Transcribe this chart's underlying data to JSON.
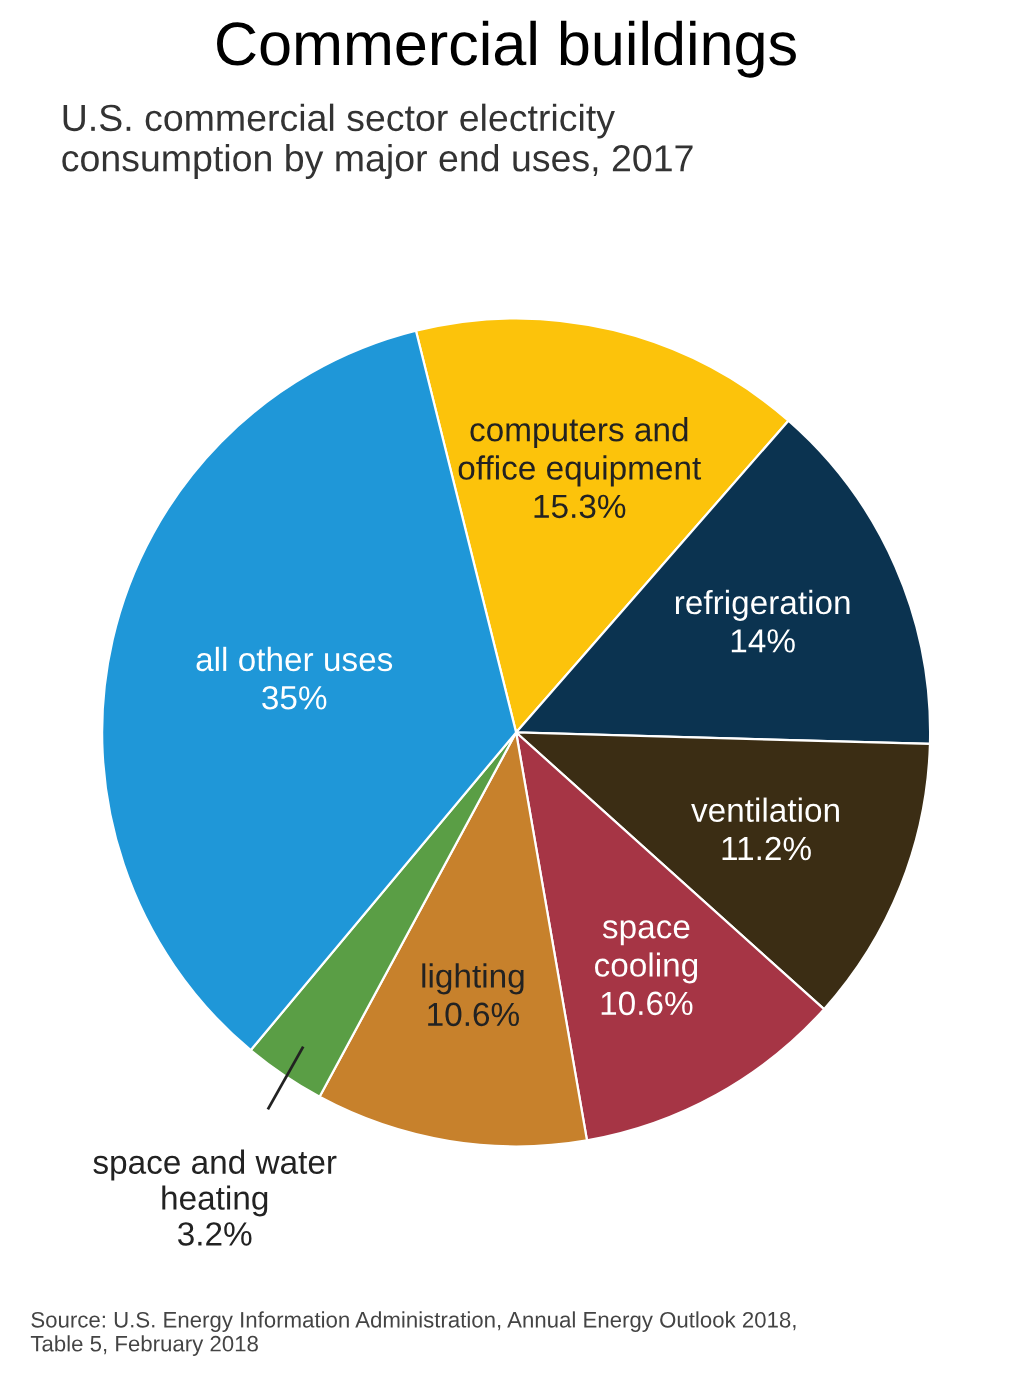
{
  "chart_data": {
    "type": "pie",
    "title": "Commercial buildings",
    "subtitle": "U.S. commercial sector electricity\nconsumption by major end uses, 2017",
    "categories": [
      "computers and\noffice equipment",
      "refrigeration",
      "ventilation",
      "space\ncooling",
      "lighting",
      "space and water\nheating",
      "all other uses"
    ],
    "values": [
      15.3,
      14,
      11.2,
      10.6,
      10.6,
      3.2,
      35
    ],
    "value_labels": [
      "15.3%",
      "14%",
      "11.2%",
      "10.6%",
      "10.6%",
      "3.2%",
      "35%"
    ],
    "colors": [
      "#fcc30b",
      "#0b3350",
      "#3b2d14",
      "#a63545",
      "#c7812c",
      "#5a9e45",
      "#1f97d8"
    ],
    "annotations": [
      "Source: U.S. Energy Information Administration, Annual Energy Outlook 2018,\nTable 5, February 2018"
    ]
  }
}
